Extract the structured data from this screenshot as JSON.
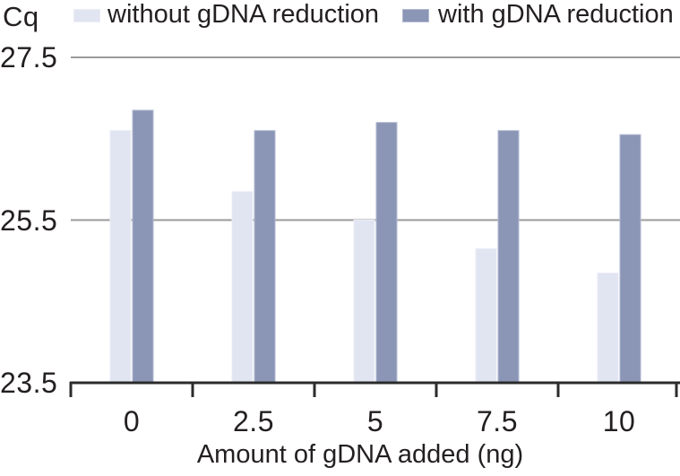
{
  "chart_data": {
    "type": "bar",
    "title": "",
    "ylabel": "Cq",
    "xlabel": "Amount of gDNA added (ng)",
    "categories": [
      "0",
      "2.5",
      "5",
      "7.5",
      "10"
    ],
    "series": [
      {
        "name": "without gDNA reduction",
        "color": "#e1e4f1",
        "edge_color": "#eceef7",
        "values": [
          26.6,
          25.85,
          25.5,
          25.15,
          24.85
        ]
      },
      {
        "name": "with gDNA reduction",
        "color": "#8b96b6",
        "edge_color": "#b2bad1",
        "values": [
          26.85,
          26.6,
          26.7,
          26.6,
          26.55
        ]
      }
    ],
    "ylim": [
      23.5,
      27.5
    ],
    "yticks": [
      27.5,
      25.5,
      23.5
    ],
    "grid": true,
    "legend_position": "top",
    "colors": {
      "gridline": "#9b9b9b",
      "axis": "#2b2b2b",
      "text": "#231f20",
      "background": "#ffffff"
    }
  }
}
